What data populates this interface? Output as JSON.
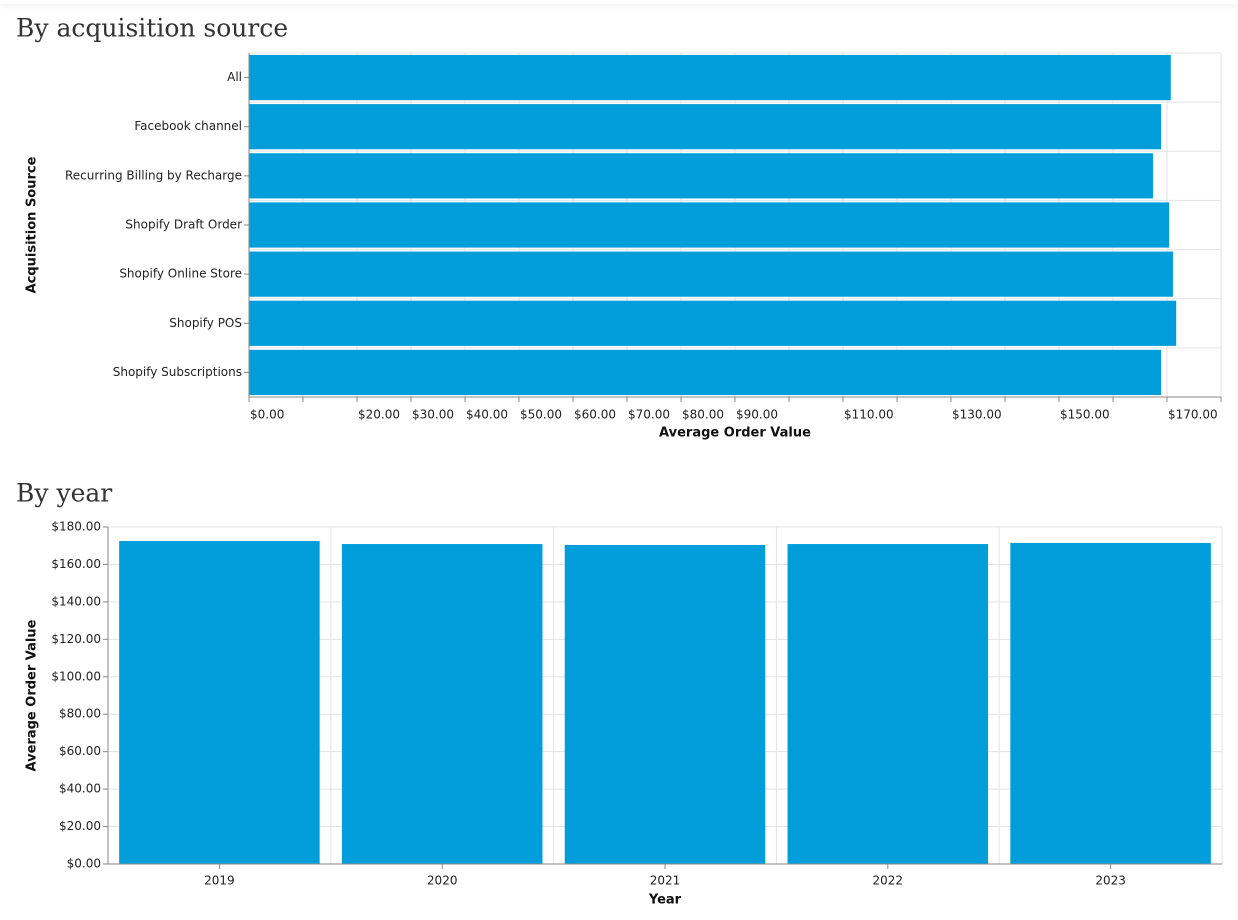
{
  "chart_data": [
    {
      "type": "bar",
      "orientation": "horizontal",
      "title": "By acquisition source",
      "x_label": "Average Order Value",
      "y_label": "Acquisition Source",
      "categories": [
        "All",
        "Facebook channel",
        "Recurring Billing by Recharge",
        "Shopify Draft Order",
        "Shopify Online Store",
        "Shopify POS",
        "Shopify Subscriptions"
      ],
      "values": [
        170.7,
        168.9,
        167.4,
        170.4,
        171.1,
        171.7,
        168.9
      ],
      "color": "#019edb",
      "grid": true,
      "xlim": [
        0,
        180
      ],
      "xticks": [
        {
          "value": 0,
          "label": "$0.00"
        },
        {
          "value": 10,
          "label": null
        },
        {
          "value": 20,
          "label": "$20.00"
        },
        {
          "value": 30,
          "label": "$30.00"
        },
        {
          "value": 40,
          "label": "$40.00"
        },
        {
          "value": 50,
          "label": "$50.00"
        },
        {
          "value": 60,
          "label": "$60.00"
        },
        {
          "value": 70,
          "label": "$70.00"
        },
        {
          "value": 80,
          "label": "$80.00"
        },
        {
          "value": 90,
          "label": "$90.00"
        },
        {
          "value": 100,
          "label": null
        },
        {
          "value": 110,
          "label": "$110.00"
        },
        {
          "value": 120,
          "label": null
        },
        {
          "value": 130,
          "label": "$130.00"
        },
        {
          "value": 140,
          "label": null
        },
        {
          "value": 150,
          "label": "$150.00"
        },
        {
          "value": 160,
          "label": null
        },
        {
          "value": 170,
          "label": "$170.00"
        },
        {
          "value": 180,
          "label": null
        }
      ]
    },
    {
      "type": "bar",
      "orientation": "vertical",
      "title": "By year",
      "x_label": "Year",
      "y_label": "Average Order Value",
      "categories": [
        "2019",
        "2020",
        "2021",
        "2022",
        "2023"
      ],
      "values": [
        172.5,
        170.9,
        170.4,
        170.9,
        171.5
      ],
      "color": "#019edb",
      "grid": true,
      "ylim": [
        0,
        180
      ],
      "yticks": [
        {
          "value": 0,
          "label": "$0.00"
        },
        {
          "value": 20,
          "label": "$20.00"
        },
        {
          "value": 40,
          "label": "$40.00"
        },
        {
          "value": 60,
          "label": "$60.00"
        },
        {
          "value": 80,
          "label": "$80.00"
        },
        {
          "value": 100,
          "label": "$100.00"
        },
        {
          "value": 120,
          "label": "$120.00"
        },
        {
          "value": 140,
          "label": "$140.00"
        },
        {
          "value": 160,
          "label": "$160.00"
        },
        {
          "value": 180,
          "label": "$180.00"
        }
      ]
    }
  ]
}
